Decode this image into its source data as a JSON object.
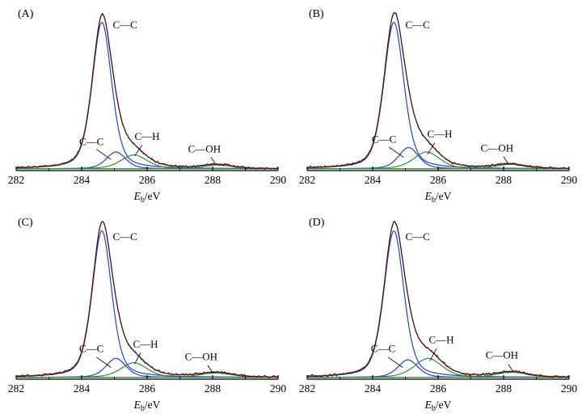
{
  "page": {
    "background": "#ffffff"
  },
  "chart_data": [
    {
      "type": "line",
      "panel_label": "(A)",
      "xlabel": "E_b/eV",
      "xlim": [
        282,
        290
      ],
      "ylim": [
        0,
        1.12
      ],
      "x_ticks": [
        282,
        284,
        286,
        288,
        290
      ],
      "x_minor_ticks": [
        283,
        285,
        287,
        289
      ],
      "series": [
        {
          "name": "raw data",
          "role": "raw",
          "color": "#1a1a1a"
        },
        {
          "name": "fit envelope",
          "role": "envelope",
          "color": "#e0251b"
        },
        {
          "name": "baseline",
          "role": "baseline",
          "color": "#cf3fae",
          "level": 0.012
        },
        {
          "name": "C—C",
          "role": "component",
          "color": "#2742c6",
          "center": 284.62,
          "height": 1.0,
          "fwhm": 0.7
        },
        {
          "name": "C—C",
          "role": "component",
          "color": "#2742c6",
          "center": 285.05,
          "height": 0.115,
          "fwhm": 0.7
        },
        {
          "name": "C—H",
          "role": "component",
          "color": "#2f8f3a",
          "center": 285.6,
          "height": 0.095,
          "fwhm": 0.95
        },
        {
          "name": "C—OH",
          "role": "component",
          "color": "#2f8f3a",
          "center": 288.15,
          "height": 0.026,
          "fwhm": 1.1
        }
      ],
      "annotations": [
        {
          "text": "C—C",
          "x": 284.95,
          "y": 0.97,
          "anchor": "start"
        },
        {
          "text": "C—C",
          "x": 284.3,
          "y": 0.175,
          "anchor": "middle",
          "pointer": [
            284.45,
            0.145,
            284.9,
            0.075
          ]
        },
        {
          "text": "C—H",
          "x": 286.0,
          "y": 0.21,
          "anchor": "middle",
          "pointer": [
            285.85,
            0.175,
            285.62,
            0.1
          ]
        },
        {
          "text": "C—OH",
          "x": 287.75,
          "y": 0.125,
          "anchor": "middle",
          "pointer": [
            287.95,
            0.09,
            288.1,
            0.04
          ]
        }
      ]
    },
    {
      "type": "line",
      "panel_label": "(B)",
      "xlabel": "E_b/eV",
      "xlim": [
        282,
        290
      ],
      "ylim": [
        0,
        1.12
      ],
      "x_ticks": [
        282,
        284,
        286,
        288,
        290
      ],
      "x_minor_ticks": [
        283,
        285,
        287,
        289
      ],
      "series": [
        {
          "name": "raw data",
          "role": "raw",
          "color": "#1a1a1a"
        },
        {
          "name": "fit envelope",
          "role": "envelope",
          "color": "#e0251b"
        },
        {
          "name": "baseline",
          "role": "baseline",
          "color": "#cf3fae",
          "level": 0.012
        },
        {
          "name": "C—C",
          "role": "component",
          "color": "#2742c6",
          "center": 284.65,
          "height": 1.0,
          "fwhm": 0.72
        },
        {
          "name": "C—C",
          "role": "component",
          "color": "#2742c6",
          "center": 285.1,
          "height": 0.145,
          "fwhm": 0.72
        },
        {
          "name": "C—H",
          "role": "component",
          "color": "#2f8f3a",
          "center": 285.65,
          "height": 0.115,
          "fwhm": 0.95
        },
        {
          "name": "C—OH",
          "role": "component",
          "color": "#2f8f3a",
          "center": 288.2,
          "height": 0.03,
          "fwhm": 1.1
        }
      ],
      "annotations": [
        {
          "text": "C—C",
          "x": 285.0,
          "y": 0.97,
          "anchor": "start"
        },
        {
          "text": "C—C",
          "x": 284.35,
          "y": 0.19,
          "anchor": "middle",
          "pointer": [
            284.5,
            0.16,
            284.95,
            0.09
          ]
        },
        {
          "text": "C—H",
          "x": 286.05,
          "y": 0.225,
          "anchor": "middle",
          "pointer": [
            285.9,
            0.19,
            285.68,
            0.11
          ]
        },
        {
          "text": "C—OH",
          "x": 287.8,
          "y": 0.13,
          "anchor": "middle",
          "pointer": [
            288.0,
            0.095,
            288.15,
            0.045
          ]
        }
      ]
    },
    {
      "type": "line",
      "panel_label": "(C)",
      "xlabel": "E_b/eV",
      "xlim": [
        282,
        290
      ],
      "ylim": [
        0,
        1.12
      ],
      "x_ticks": [
        282,
        284,
        286,
        288,
        290
      ],
      "x_minor_ticks": [
        283,
        285,
        287,
        289
      ],
      "series": [
        {
          "name": "raw data",
          "role": "raw",
          "color": "#1a1a1a"
        },
        {
          "name": "fit envelope",
          "role": "envelope",
          "color": "#e0251b"
        },
        {
          "name": "baseline",
          "role": "baseline",
          "color": "#cf3fae",
          "level": 0.012
        },
        {
          "name": "C—C",
          "role": "component",
          "color": "#2742c6",
          "center": 284.62,
          "height": 1.0,
          "fwhm": 0.7
        },
        {
          "name": "C—C",
          "role": "component",
          "color": "#2742c6",
          "center": 285.05,
          "height": 0.13,
          "fwhm": 0.72
        },
        {
          "name": "C—H",
          "role": "component",
          "color": "#2f8f3a",
          "center": 285.6,
          "height": 0.1,
          "fwhm": 0.95
        },
        {
          "name": "C—OH",
          "role": "component",
          "color": "#2f8f3a",
          "center": 288.1,
          "height": 0.03,
          "fwhm": 1.2
        }
      ],
      "annotations": [
        {
          "text": "C—C",
          "x": 284.95,
          "y": 0.95,
          "anchor": "start"
        },
        {
          "text": "C—C",
          "x": 284.3,
          "y": 0.185,
          "anchor": "middle",
          "pointer": [
            284.45,
            0.15,
            284.9,
            0.08
          ]
        },
        {
          "text": "C—H",
          "x": 285.95,
          "y": 0.215,
          "anchor": "middle",
          "pointer": [
            285.8,
            0.18,
            285.62,
            0.105
          ]
        },
        {
          "text": "C—OH",
          "x": 287.65,
          "y": 0.13,
          "anchor": "middle",
          "pointer": [
            287.85,
            0.095,
            288.0,
            0.045
          ]
        }
      ]
    },
    {
      "type": "line",
      "panel_label": "(D)",
      "xlabel": "E_b/eV",
      "xlim": [
        282,
        290
      ],
      "ylim": [
        0,
        1.12
      ],
      "x_ticks": [
        282,
        284,
        286,
        288,
        290
      ],
      "x_minor_ticks": [
        283,
        285,
        287,
        289
      ],
      "series": [
        {
          "name": "raw data",
          "role": "raw",
          "color": "#1a1a1a"
        },
        {
          "name": "fit envelope",
          "role": "envelope",
          "color": "#e0251b"
        },
        {
          "name": "baseline",
          "role": "baseline",
          "color": "#cf3fae",
          "level": 0.012
        },
        {
          "name": "C—C",
          "role": "component",
          "color": "#2742c6",
          "center": 284.65,
          "height": 1.0,
          "fwhm": 0.72
        },
        {
          "name": "C—C",
          "role": "component",
          "color": "#2742c6",
          "center": 285.08,
          "height": 0.12,
          "fwhm": 0.72
        },
        {
          "name": "C—H",
          "role": "component",
          "color": "#2f8f3a",
          "center": 285.7,
          "height": 0.13,
          "fwhm": 1.0
        },
        {
          "name": "C—OH",
          "role": "component",
          "color": "#2f8f3a",
          "center": 288.25,
          "height": 0.035,
          "fwhm": 1.15
        }
      ],
      "annotations": [
        {
          "text": "C—C",
          "x": 285.0,
          "y": 0.95,
          "anchor": "start"
        },
        {
          "text": "C—C",
          "x": 284.32,
          "y": 0.185,
          "anchor": "middle",
          "pointer": [
            284.47,
            0.15,
            284.92,
            0.08
          ]
        },
        {
          "text": "C—H",
          "x": 286.1,
          "y": 0.245,
          "anchor": "middle",
          "pointer": [
            285.95,
            0.21,
            285.75,
            0.125
          ]
        },
        {
          "text": "C—OH",
          "x": 287.95,
          "y": 0.14,
          "anchor": "middle",
          "pointer": [
            288.15,
            0.1,
            288.3,
            0.05
          ]
        }
      ]
    }
  ]
}
